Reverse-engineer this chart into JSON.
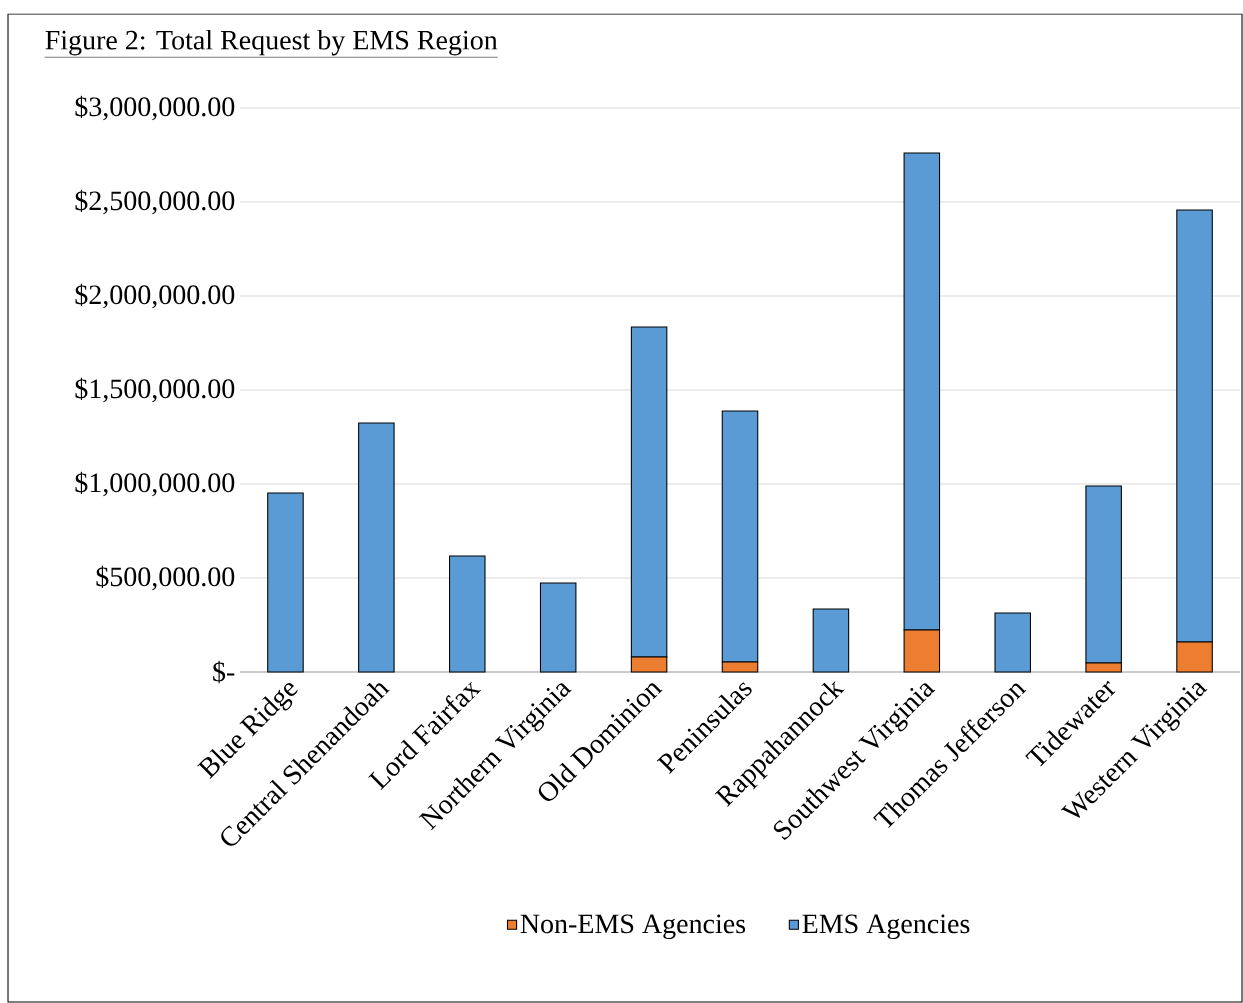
{
  "chart_data": {
    "type": "bar",
    "stacked": true,
    "title": "Figure 2: Total Request by EMS Region",
    "categories": [
      "Blue Ridge",
      "Central Shenandoah",
      "Lord Fairfax",
      "Northern Virginia",
      "Old Dominion",
      "Peninsulas",
      "Rappahannock",
      "Southwest Virginia",
      "Thomas Jefferson",
      "Tidewater",
      "Western Virginia"
    ],
    "series": [
      {
        "name": "Non-EMS Agencies",
        "color": "#ed7d31",
        "values": [
          0,
          0,
          0,
          0,
          80000,
          53000,
          0,
          223000,
          0,
          48000,
          160000
        ]
      },
      {
        "name": "EMS Agencies",
        "color": "#5b9bd5",
        "values": [
          952000,
          1324000,
          617000,
          473000,
          1755000,
          1335000,
          335000,
          2538000,
          314000,
          941000,
          2297000
        ]
      }
    ],
    "ylim": [
      0,
      3000000
    ],
    "yticks": [
      {
        "value": 0,
        "label": "$-"
      },
      {
        "value": 500000,
        "label": "$500,000.00"
      },
      {
        "value": 1000000,
        "label": "$1,000,000.00"
      },
      {
        "value": 1500000,
        "label": "$1,500,000.00"
      },
      {
        "value": 2000000,
        "label": "$2,000,000.00"
      },
      {
        "value": 2500000,
        "label": "$2,500,000.00"
      },
      {
        "value": 3000000,
        "label": "$3,000,000.00"
      }
    ],
    "grid": "y",
    "legend": "bottom"
  }
}
